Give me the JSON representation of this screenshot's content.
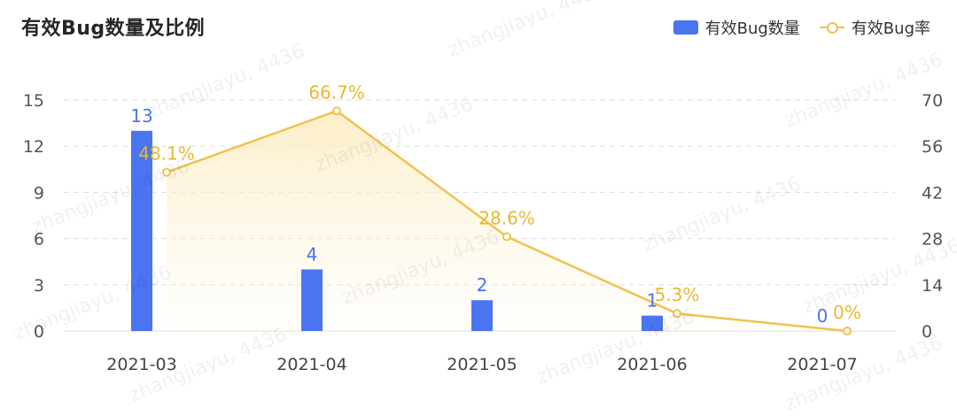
{
  "title": "有效Bug数量及比例",
  "legend": {
    "bar_label": "有效Bug数量",
    "line_label": "有效Bug率"
  },
  "watermark": "zhangjiayu, 4436",
  "colors": {
    "bar": "#4a74f0",
    "line": "#f0c24d",
    "rate_label": "#e8b830",
    "grid": "#dddddd"
  },
  "chart_data": {
    "type": "bar",
    "title": "有效Bug数量及比例",
    "categories": [
      "2021-03",
      "2021-04",
      "2021-05",
      "2021-06",
      "2021-07"
    ],
    "series": [
      {
        "name": "有效Bug数量",
        "type": "bar",
        "axis": "left",
        "values": [
          13,
          4,
          2,
          1,
          0
        ],
        "labels": [
          "13",
          "4",
          "2",
          "1",
          "0"
        ]
      },
      {
        "name": "有效Bug率",
        "type": "line",
        "axis": "right",
        "values": [
          48.1,
          66.7,
          28.6,
          5.3,
          0
        ],
        "labels": [
          "48.1%",
          "66.7%",
          "28.6%",
          "5.3%",
          "0%"
        ]
      }
    ],
    "y_left": {
      "ticks": [
        0,
        3,
        6,
        9,
        12,
        15
      ],
      "range": [
        0,
        15
      ]
    },
    "y_right": {
      "ticks": [
        0,
        14,
        28,
        42,
        56,
        70
      ],
      "range": [
        0,
        70
      ]
    },
    "grid": true,
    "legend_position": "top-right"
  }
}
